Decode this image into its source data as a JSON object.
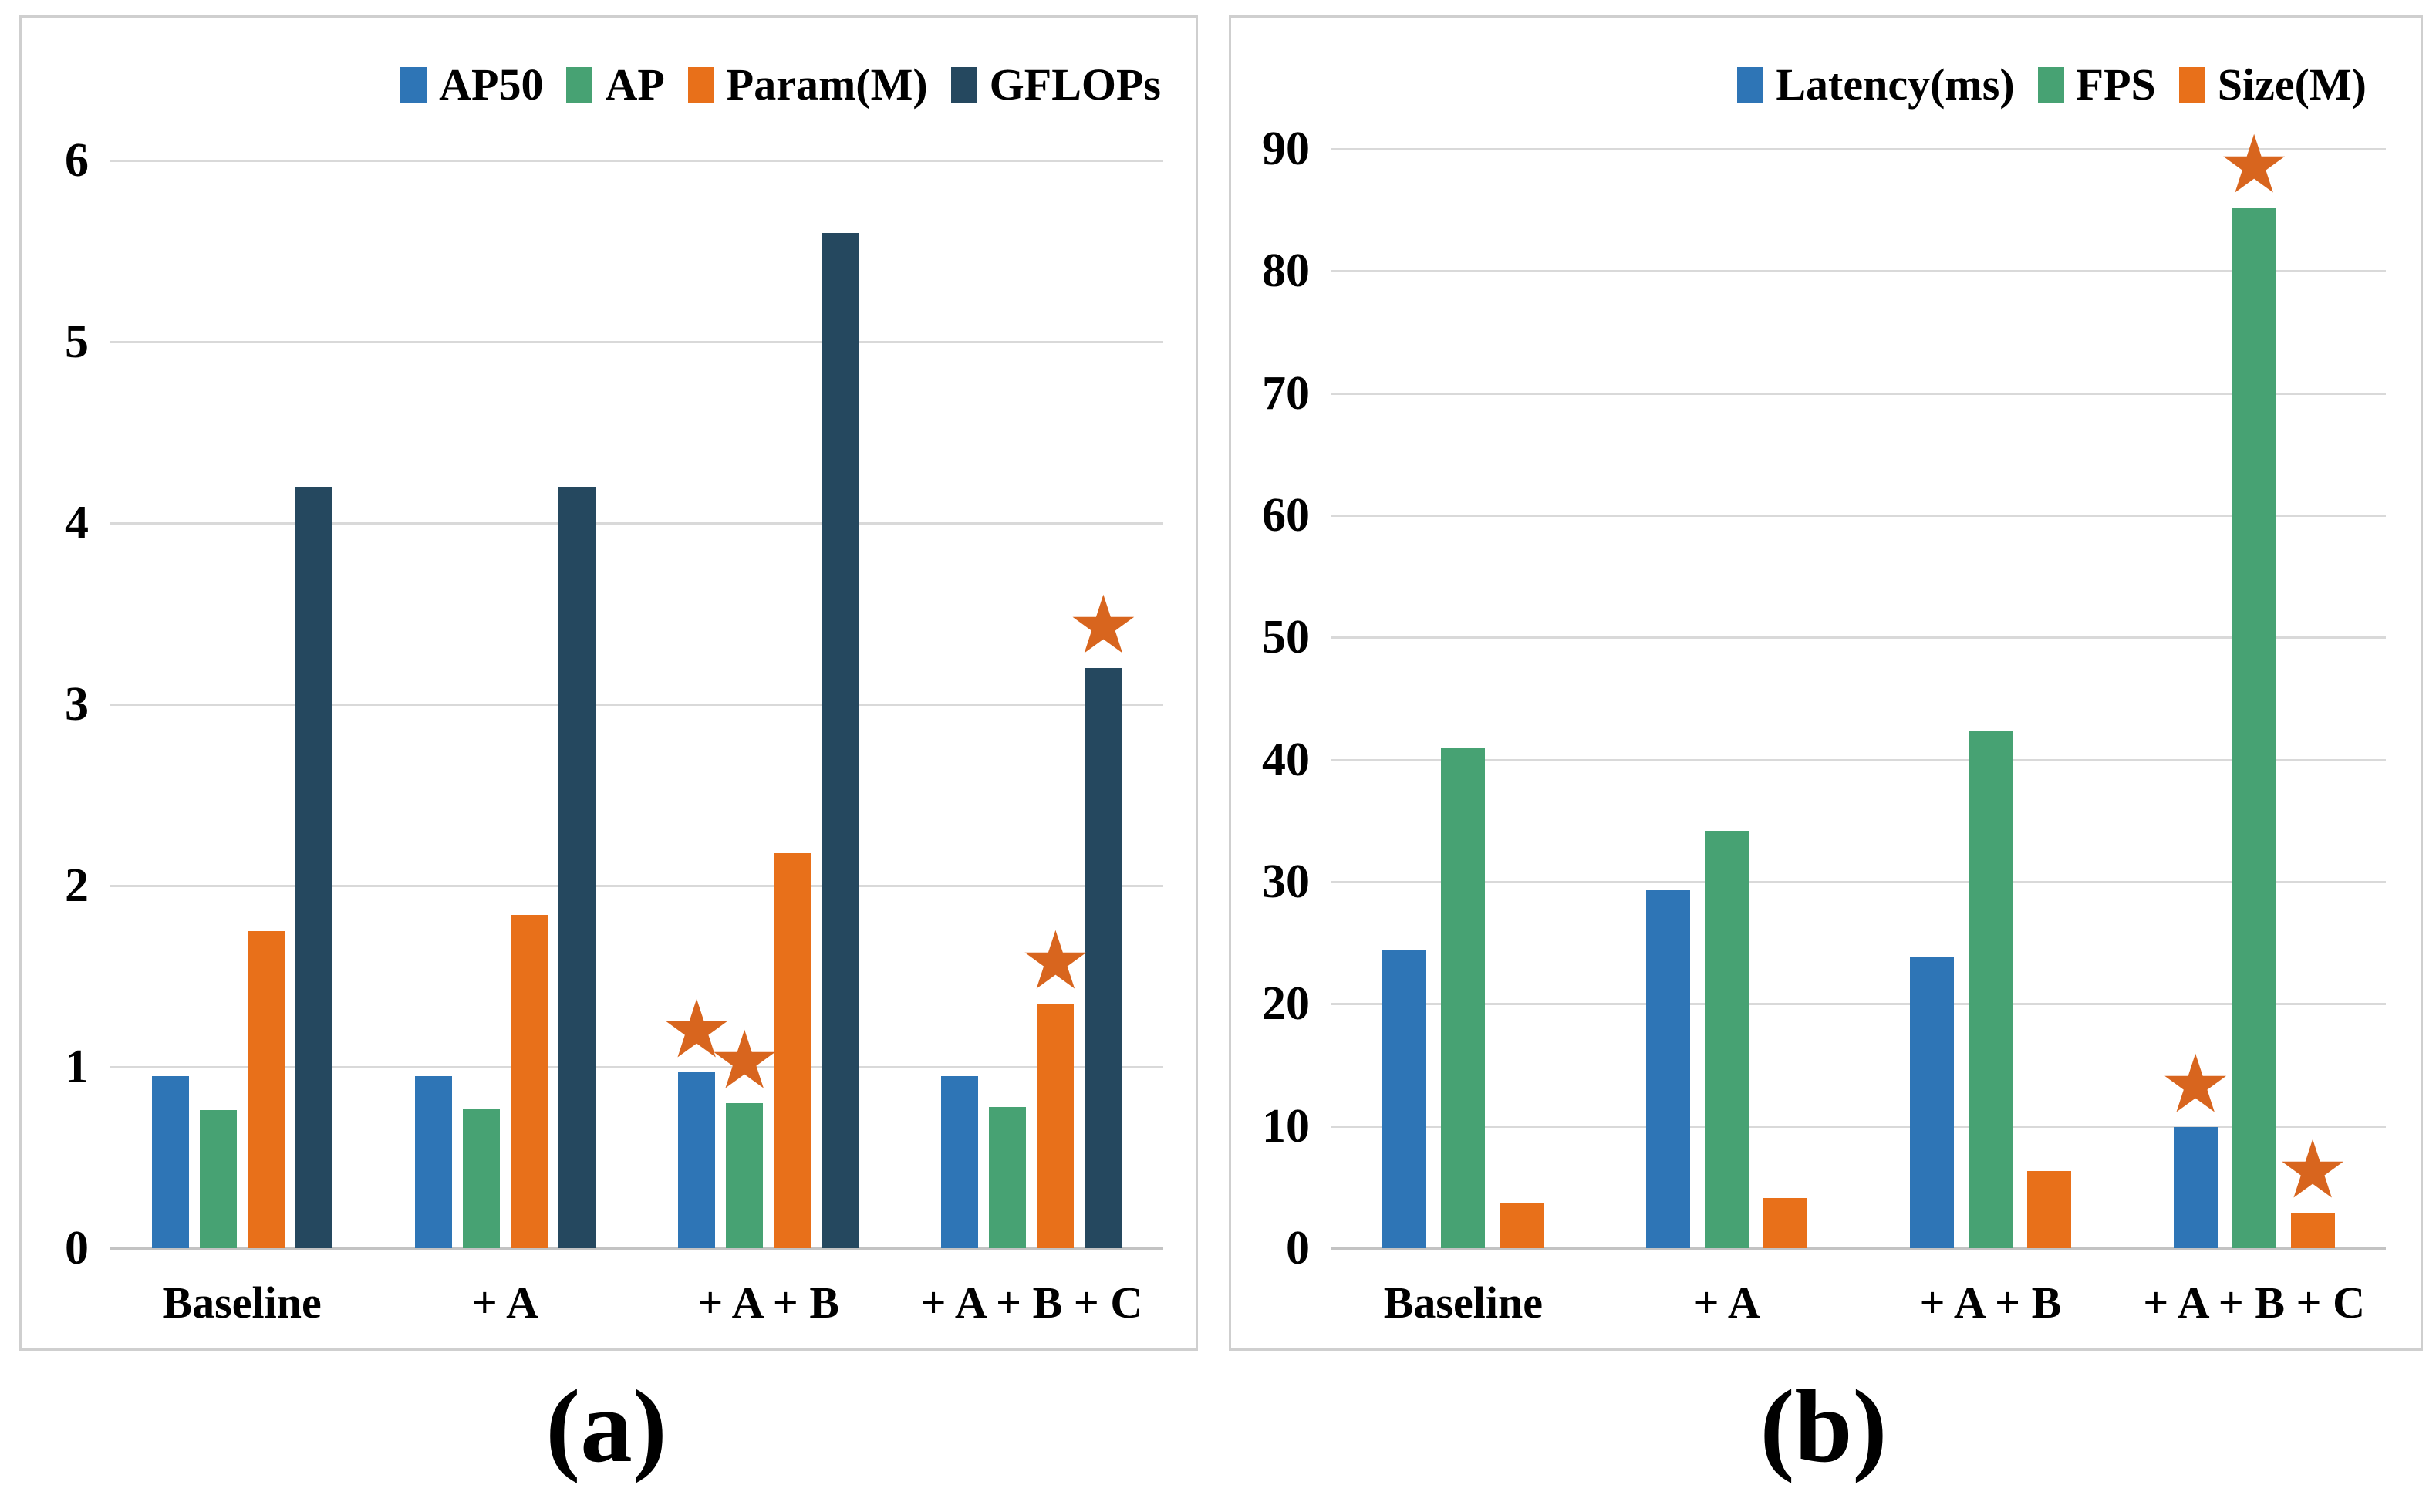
{
  "page": {
    "background": "#ffffff"
  },
  "colors": {
    "blue": "#2E75B6",
    "green": "#47A273",
    "orange": "#E8701A",
    "navy": "#25485F",
    "star": "#D8651E",
    "gridline": "#D9D9D9",
    "zeroline": "#C3C3C3",
    "panel_border": "#CFCFCF",
    "text": "#000000"
  },
  "marker": {
    "glyph": "★",
    "color": "#D8651E",
    "name": "best-result-star"
  },
  "chart_data": [
    {
      "id": "a",
      "type": "bar",
      "caption": "(a)",
      "title": "",
      "xlabel": "",
      "ylabel": "",
      "grid": true,
      "legend_position": "top-right",
      "categories": [
        "Baseline",
        "+ A",
        "+ A + B",
        "+ A + B + C"
      ],
      "series": [
        {
          "name": "AP50",
          "color_key": "blue",
          "values": [
            0.95,
            0.95,
            0.97,
            0.95
          ]
        },
        {
          "name": "AP",
          "color_key": "green",
          "values": [
            0.76,
            0.77,
            0.8,
            0.78
          ]
        },
        {
          "name": "Param(M)",
          "color_key": "orange",
          "values": [
            1.75,
            1.84,
            2.18,
            1.35
          ]
        },
        {
          "name": "GFLOPs",
          "color_key": "navy",
          "values": [
            4.2,
            4.2,
            5.6,
            3.2
          ]
        }
      ],
      "ylim": [
        0,
        6
      ],
      "ytick_step": 1,
      "ytick_labels": [
        "0",
        "1",
        "2",
        "3",
        "4",
        "5",
        "6"
      ],
      "stars": [
        {
          "series": "AP50",
          "category": "+ A + B"
        },
        {
          "series": "AP",
          "category": "+ A + B"
        },
        {
          "series": "Param(M)",
          "category": "+ A + B + C"
        },
        {
          "series": "GFLOPs",
          "category": "+ A + B + C"
        }
      ]
    },
    {
      "id": "b",
      "type": "bar",
      "caption": "(b)",
      "title": "",
      "xlabel": "",
      "ylabel": "",
      "grid": true,
      "legend_position": "top-right",
      "categories": [
        "Baseline",
        "+ A",
        "+ A + B",
        "+ A + B + C"
      ],
      "series": [
        {
          "name": "Latency(ms)",
          "color_key": "blue",
          "values": [
            24.4,
            29.3,
            23.8,
            9.9
          ]
        },
        {
          "name": "FPS",
          "color_key": "green",
          "values": [
            41,
            34.2,
            42.3,
            85.2
          ]
        },
        {
          "name": "Size(M)",
          "color_key": "orange",
          "values": [
            3.7,
            4.1,
            6.3,
            2.9
          ]
        }
      ],
      "ylim": [
        0,
        90
      ],
      "ytick_step": 10,
      "ytick_labels": [
        "0",
        "10",
        "20",
        "30",
        "40",
        "50",
        "60",
        "70",
        "80",
        "90"
      ],
      "stars": [
        {
          "series": "Latency(ms)",
          "category": "+ A + B + C"
        },
        {
          "series": "FPS",
          "category": "+ A + B + C"
        },
        {
          "series": "Size(M)",
          "category": "+ A + B + C"
        }
      ]
    }
  ]
}
